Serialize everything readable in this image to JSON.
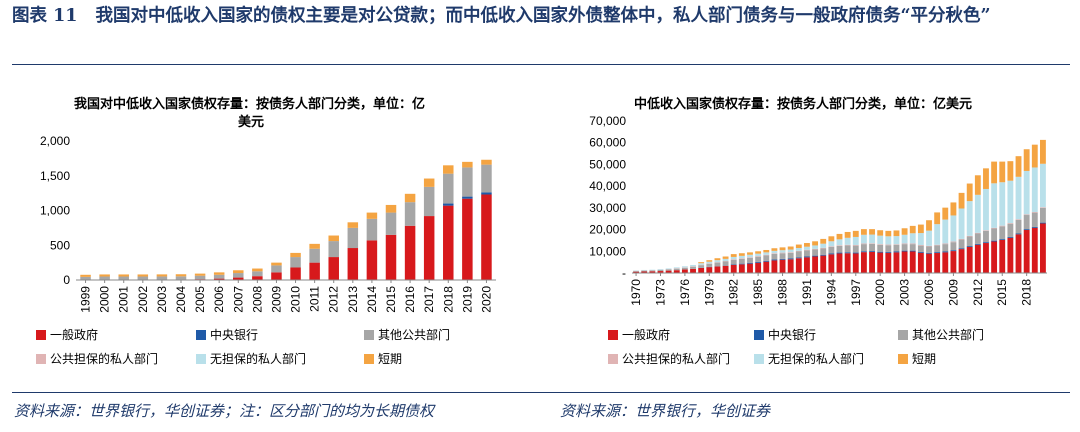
{
  "figure": {
    "label": "图表 11",
    "title": "我国对中低收入国家的债权主要是对公贷款；而中低收入国家外债整体中，私人部门债务与一般政府债务“平分秋色”",
    "source_left": "资料来源：世界银行，华创证券；注：区分部门的均为长期债权",
    "source_right": "资料来源：世界银行，华创证券"
  },
  "colors": {
    "general_gov": "#d7191c",
    "central_bank": "#1f5aa8",
    "other_public": "#a6a6a6",
    "public_guaranteed_private": "#e0b4b4",
    "non_guaranteed_private": "#b9e0ea",
    "short_term": "#f4a442",
    "text_primary": "#1f3a6b"
  },
  "chart_data": [
    {
      "type": "bar",
      "stacked": true,
      "title": "我国对中低收入国家债权存量：按债务人部门分类，单位：亿美元",
      "title_lines": [
        "我国对中低收入国家债权存量：按债务人部门分类，单位：亿",
        "美元"
      ],
      "categories": [
        "1999",
        "2000",
        "2001",
        "2002",
        "2003",
        "2004",
        "2005",
        "2006",
        "2007",
        "2008",
        "2009",
        "2010",
        "2011",
        "2012",
        "2013",
        "2014",
        "2015",
        "2016",
        "2017",
        "2018",
        "2019",
        "2020"
      ],
      "ylim": [
        0,
        2000
      ],
      "yticks": [
        0,
        500,
        1000,
        1500,
        2000
      ],
      "ytick_labels": [
        "0",
        "500",
        "1,000",
        "1,500",
        "2,000"
      ],
      "series": [
        {
          "name": "一般政府",
          "color_key": "general_gov",
          "values": [
            5,
            5,
            5,
            5,
            6,
            8,
            12,
            20,
            35,
            55,
            110,
            180,
            250,
            330,
            460,
            570,
            650,
            780,
            920,
            1070,
            1170,
            1230
          ]
        },
        {
          "name": "中央银行",
          "color_key": "central_bank",
          "values": [
            0,
            0,
            0,
            0,
            0,
            0,
            0,
            0,
            0,
            0,
            0,
            0,
            0,
            0,
            0,
            0,
            0,
            0,
            0,
            30,
            30,
            30
          ]
        },
        {
          "name": "其他公共部门",
          "color_key": "other_public",
          "values": [
            40,
            45,
            45,
            45,
            45,
            45,
            50,
            55,
            65,
            70,
            100,
            150,
            200,
            230,
            290,
            310,
            320,
            340,
            420,
            430,
            420,
            400
          ]
        },
        {
          "name": "公共担保的私人部门",
          "color_key": "public_guaranteed_private",
          "values": [
            0,
            0,
            0,
            0,
            0,
            0,
            0,
            0,
            0,
            0,
            0,
            0,
            0,
            0,
            0,
            0,
            0,
            0,
            0,
            0,
            0,
            0
          ]
        },
        {
          "name": "无担保的私人部门",
          "color_key": "non_guaranteed_private",
          "values": [
            0,
            0,
            0,
            0,
            0,
            0,
            0,
            0,
            0,
            0,
            0,
            0,
            0,
            0,
            0,
            0,
            0,
            0,
            0,
            0,
            0,
            0
          ]
        },
        {
          "name": "短期",
          "color_key": "short_term",
          "values": [
            30,
            30,
            30,
            30,
            30,
            30,
            30,
            35,
            40,
            40,
            40,
            60,
            70,
            80,
            80,
            90,
            110,
            120,
            120,
            120,
            80,
            70
          ]
        }
      ],
      "legend_position": "bottom"
    },
    {
      "type": "bar",
      "stacked": true,
      "title": "中低收入国家债权存量：按债务人部门分类，单位：亿美元",
      "categories": [
        "1970",
        "1971",
        "1972",
        "1973",
        "1974",
        "1975",
        "1976",
        "1977",
        "1978",
        "1979",
        "1980",
        "1981",
        "1982",
        "1983",
        "1984",
        "1985",
        "1986",
        "1987",
        "1988",
        "1989",
        "1990",
        "1991",
        "1992",
        "1993",
        "1994",
        "1995",
        "1996",
        "1997",
        "1998",
        "1999",
        "2000",
        "2001",
        "2002",
        "2003",
        "2004",
        "2005",
        "2006",
        "2007",
        "2008",
        "2009",
        "2010",
        "2011",
        "2012",
        "2013",
        "2014",
        "2015",
        "2016",
        "2017",
        "2018",
        "2019",
        "2020"
      ],
      "xtick_labels": [
        "1970",
        "1973",
        "1976",
        "1979",
        "1982",
        "1985",
        "1988",
        "1991",
        "1994",
        "1997",
        "2000",
        "2003",
        "2006",
        "2009",
        "2012",
        "2015",
        "2018"
      ],
      "ylim": [
        0,
        70000
      ],
      "yticks": [
        0,
        10000,
        20000,
        30000,
        40000,
        50000,
        60000,
        70000
      ],
      "ytick_labels": [
        "-",
        "10,000",
        "20,000",
        "30,000",
        "40,000",
        "50,000",
        "60,000",
        "70,000"
      ],
      "series": [
        {
          "name": "一般政府",
          "color_key": "general_gov",
          "values": [
            600,
            700,
            800,
            900,
            1100,
            1300,
            1600,
            1900,
            2300,
            2700,
            3000,
            3300,
            3700,
            4000,
            4300,
            4700,
            5200,
            5800,
            6100,
            6300,
            6800,
            7200,
            7600,
            8000,
            8600,
            9000,
            9100,
            9000,
            9600,
            9700,
            9400,
            9300,
            9500,
            9900,
            9900,
            9300,
            8900,
            9200,
            9500,
            10100,
            11000,
            12000,
            13000,
            13800,
            14500,
            15200,
            16200,
            17800,
            19800,
            20800,
            22800
          ]
        },
        {
          "name": "中央银行",
          "color_key": "central_bank",
          "values": [
            0,
            0,
            0,
            0,
            0,
            0,
            0,
            0,
            100,
            100,
            100,
            100,
            200,
            300,
            400,
            400,
            400,
            400,
            400,
            400,
            400,
            400,
            400,
            400,
            400,
            400,
            400,
            400,
            400,
            400,
            400,
            400,
            400,
            400,
            400,
            400,
            400,
            400,
            400,
            400,
            400,
            400,
            400,
            400,
            400,
            400,
            400,
            400,
            400,
            400,
            400
          ]
        },
        {
          "name": "其他公共部门",
          "color_key": "other_public",
          "values": [
            300,
            400,
            400,
            500,
            600,
            700,
            800,
            1000,
            1200,
            1400,
            1700,
            1900,
            2100,
            2200,
            2300,
            2400,
            2500,
            2600,
            2600,
            2600,
            2700,
            2800,
            2800,
            2900,
            3000,
            3100,
            3200,
            3200,
            3300,
            3300,
            3200,
            3100,
            3000,
            3000,
            3000,
            2900,
            2900,
            3100,
            3400,
            3700,
            4000,
            4400,
            4800,
            5200,
            5600,
            5900,
            6100,
            6300,
            6500,
            6600,
            6800
          ]
        },
        {
          "name": "公共担保的私人部门",
          "color_key": "public_guaranteed_private",
          "values": [
            100,
            100,
            100,
            100,
            100,
            200,
            200,
            200,
            200,
            200,
            200,
            200,
            300,
            300,
            300,
            300,
            300,
            300,
            300,
            300,
            300,
            300,
            300,
            300,
            300,
            300,
            300,
            300,
            300,
            300,
            300,
            300,
            300,
            300,
            300,
            300,
            300,
            300,
            300,
            300,
            300,
            300,
            300,
            300,
            300,
            300,
            300,
            300,
            300,
            300,
            300
          ]
        },
        {
          "name": "无担保的私人部门",
          "color_key": "non_guaranteed_private",
          "values": [
            200,
            200,
            200,
            300,
            300,
            400,
            500,
            600,
            700,
            800,
            900,
            1000,
            1100,
            1100,
            1100,
            1100,
            1100,
            1100,
            1100,
            1200,
            1300,
            1400,
            1600,
            1900,
            2300,
            2700,
            3200,
            3700,
            4000,
            4000,
            3900,
            3800,
            3800,
            4000,
            4700,
            5500,
            7000,
            9500,
            11000,
            12000,
            14000,
            16000,
            17500,
            19000,
            20500,
            20000,
            19500,
            19500,
            20000,
            20500,
            20000
          ]
        },
        {
          "name": "短期",
          "color_key": "short_term",
          "values": [
            0,
            0,
            0,
            0,
            0,
            0,
            0,
            0,
            500,
            700,
            900,
            1100,
            1300,
            1200,
            1100,
            1100,
            1100,
            1200,
            1300,
            1400,
            1600,
            1700,
            1900,
            2200,
            2300,
            2500,
            2700,
            2800,
            2600,
            2500,
            2500,
            2500,
            2600,
            3000,
            3400,
            3900,
            4800,
            5400,
            5500,
            6000,
            7200,
            8100,
            9000,
            9500,
            10000,
            9500,
            9000,
            9500,
            10000,
            10500,
            11000
          ]
        }
      ],
      "legend_position": "bottom"
    }
  ]
}
